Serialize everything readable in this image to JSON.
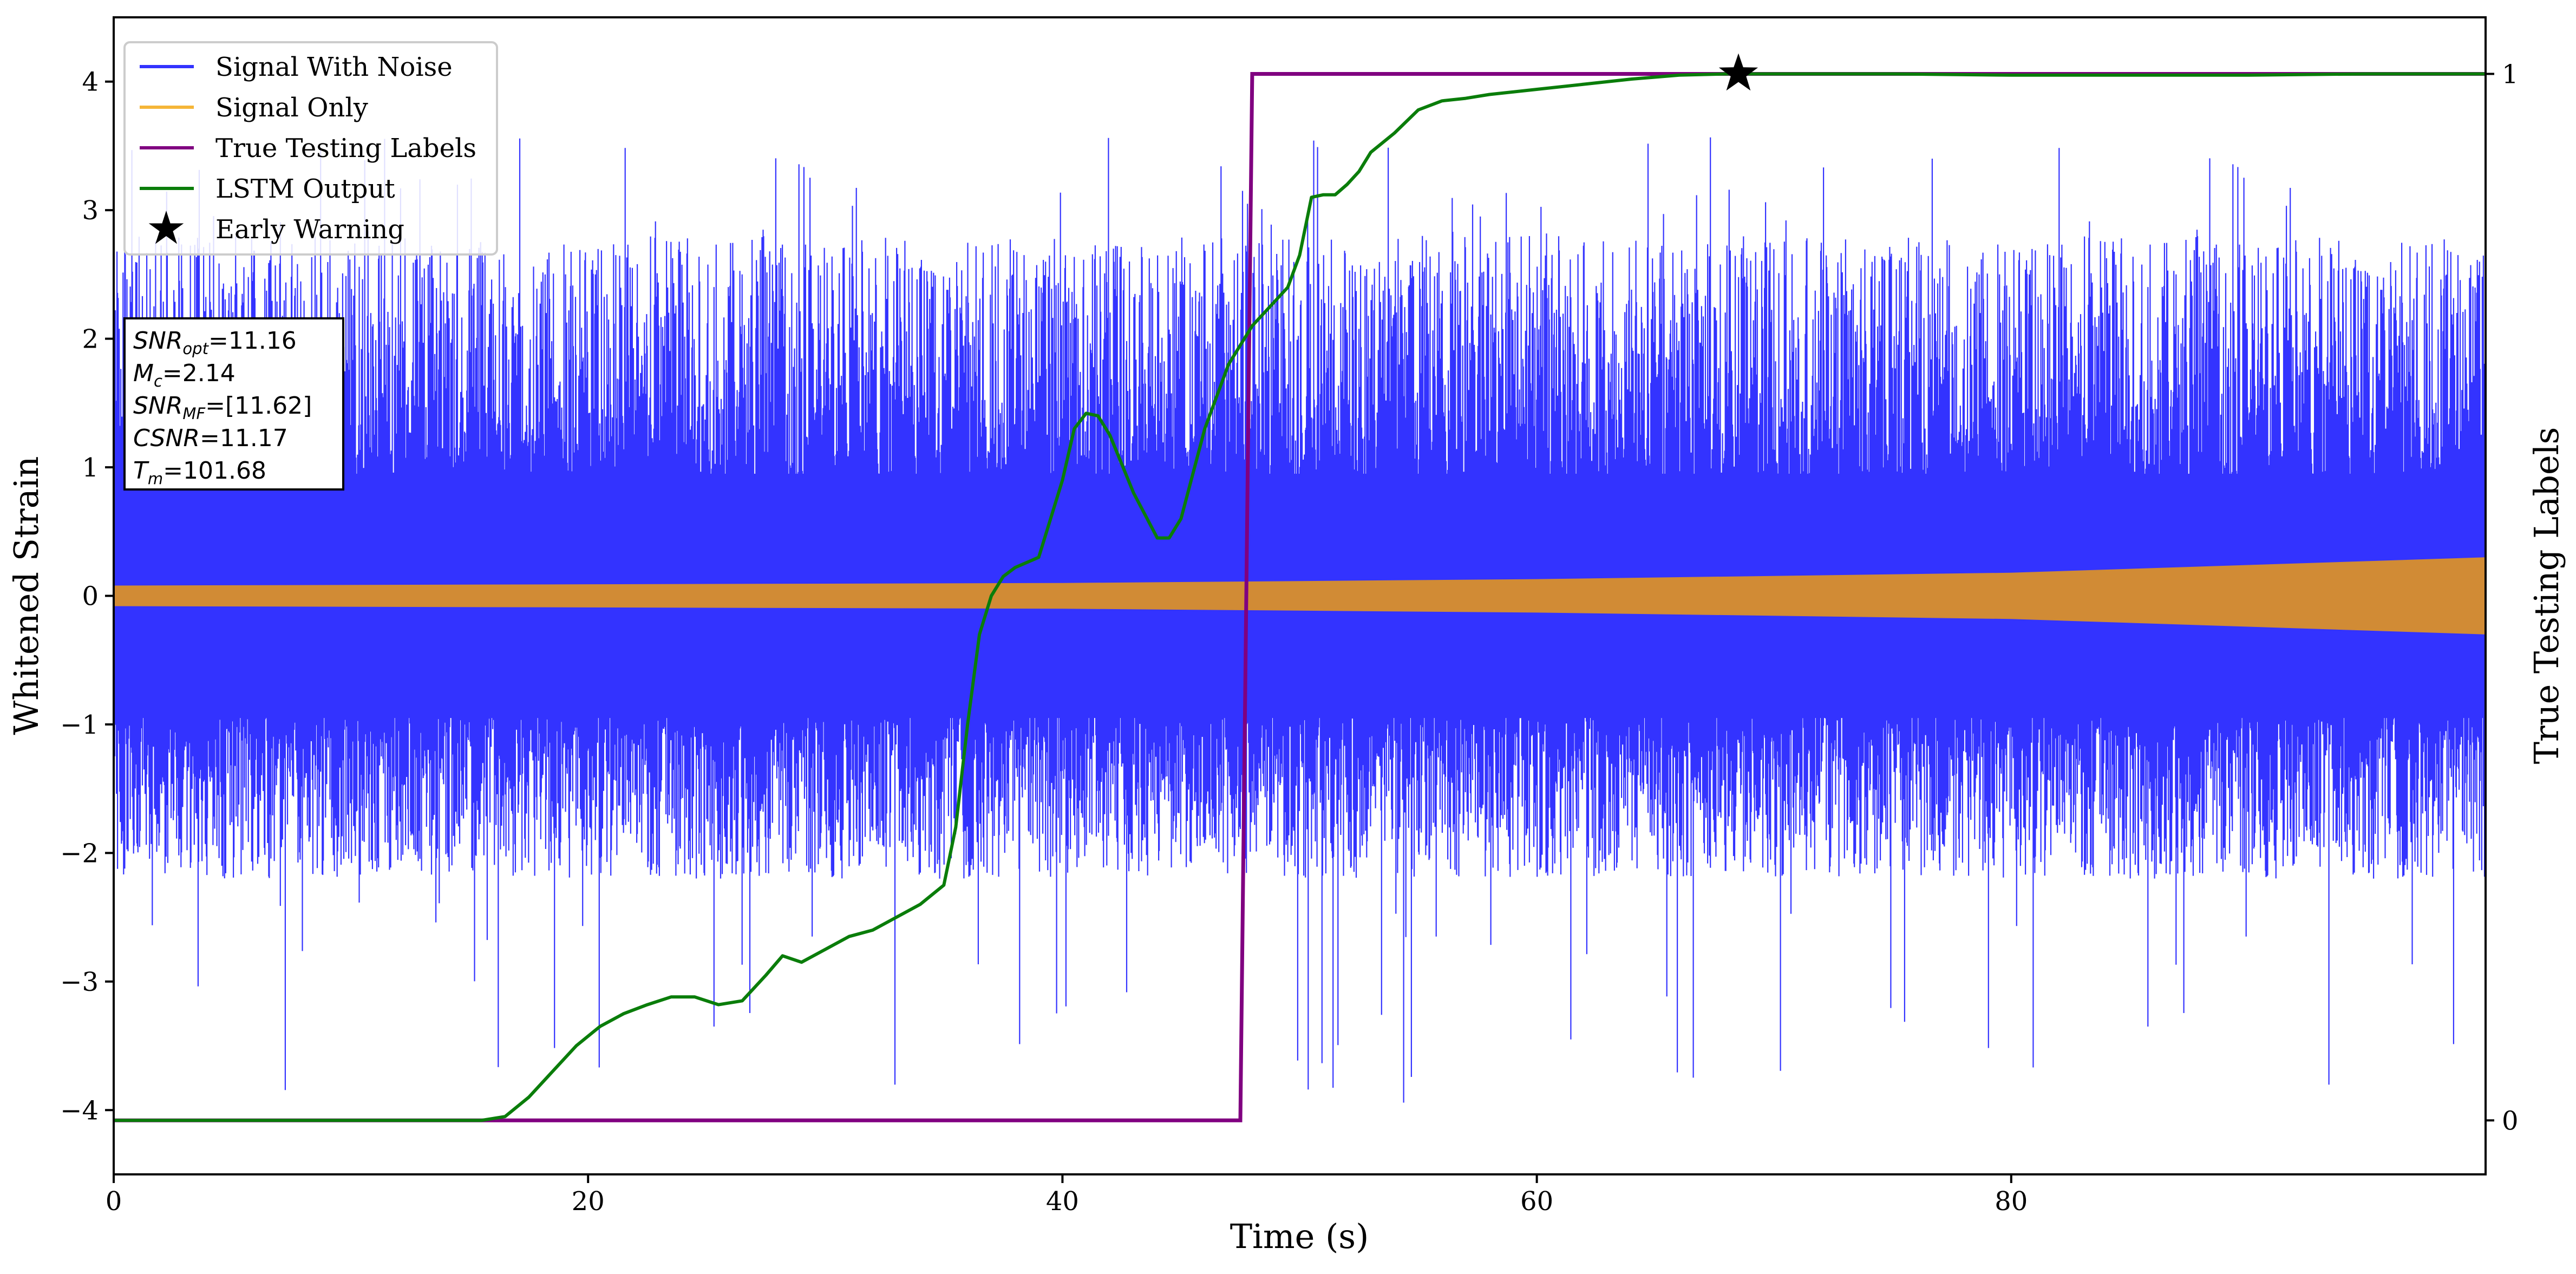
{
  "colors": {
    "noise": "#3333ff",
    "signal": "#d18b35",
    "labels": "#800080",
    "lstm": "#0a7d0a",
    "marker": "#000000"
  },
  "chart_data": {
    "type": "line",
    "xlabel": "Time (s)",
    "ylabel": "Whitened Strain",
    "ylabel_right": "True Testing Labels",
    "xlim": [
      0,
      100
    ],
    "ylim": [
      -4.5,
      4.5
    ],
    "xticks": [
      0,
      20,
      40,
      60,
      80
    ],
    "yticks": [
      -4,
      -3,
      -2,
      -1,
      0,
      1,
      2,
      3,
      4
    ],
    "yticks_right": [
      0,
      1
    ],
    "legend_position": "top-left",
    "legend": [
      {
        "label": "Signal With Noise",
        "color": "#3333ff",
        "kind": "line"
      },
      {
        "label": "Signal Only",
        "color": "#f5b638",
        "kind": "line"
      },
      {
        "label": "True Testing Labels",
        "color": "#800080",
        "kind": "line"
      },
      {
        "label": "LSTM Output",
        "color": "#0a7d0a",
        "kind": "line"
      },
      {
        "label": "Early Warning",
        "color": "#000000",
        "kind": "star"
      }
    ],
    "info_box": {
      "snr_opt_sym": "SNR",
      "snr_opt_sub": "opt",
      "snr_opt_val": "=11.16",
      "mc_sym": "M",
      "mc_sub": "c",
      "mc_val": "=2.14",
      "snr_mf_sym": "SNR",
      "snr_mf_sub": "MF",
      "snr_mf_val": "=[11.62]",
      "csnr_sym": "CSNR",
      "csnr_val": "=11.17",
      "tm_sym": "T",
      "tm_sub": "m",
      "tm_val": "=101.68"
    },
    "series": [
      {
        "name": "Signal With Noise",
        "axis": "left",
        "style": "noise-band",
        "value_range": [
          -4.05,
          3.57
        ],
        "typical_envelope": [
          -2.2,
          2.8
        ]
      },
      {
        "name": "Signal Only",
        "axis": "left",
        "style": "envelope",
        "x": [
          0,
          20,
          40,
          60,
          80,
          100
        ],
        "upper": [
          0.08,
          0.09,
          0.1,
          0.13,
          0.18,
          0.3
        ],
        "lower": [
          -0.08,
          -0.09,
          -0.1,
          -0.13,
          -0.18,
          -0.3
        ]
      },
      {
        "name": "True Testing Labels",
        "axis": "right",
        "x": [
          0,
          47.5,
          48.0,
          100
        ],
        "y": [
          0,
          0,
          1,
          1
        ]
      },
      {
        "name": "LSTM Output",
        "axis": "left",
        "x": [
          0,
          15.5,
          16.5,
          17.5,
          18.5,
          19.5,
          20.5,
          21.5,
          22.5,
          23.5,
          24.5,
          25.5,
          26.5,
          27.5,
          28.2,
          29.0,
          30.0,
          31.0,
          32.0,
          33.0,
          34.0,
          35.0,
          35.5,
          36.0,
          36.5,
          37.0,
          37.5,
          38.0,
          39.0,
          40.0,
          40.5,
          41.0,
          41.5,
          42.0,
          43.0,
          44.0,
          44.5,
          45.0,
          46.0,
          47.0,
          48.0,
          49.0,
          49.5,
          50.0,
          50.5,
          51.0,
          51.5,
          52.0,
          52.5,
          53.0,
          54.0,
          55.0,
          56.0,
          57.0,
          58.0,
          60.0,
          62.0,
          64.0,
          66.0,
          68.0,
          70.0,
          75.0,
          80.0,
          90.0,
          95.0,
          100.0
        ],
        "y": [
          -4.08,
          -4.08,
          -4.05,
          -3.9,
          -3.7,
          -3.5,
          -3.35,
          -3.25,
          -3.18,
          -3.12,
          -3.12,
          -3.18,
          -3.15,
          -2.95,
          -2.8,
          -2.85,
          -2.75,
          -2.65,
          -2.6,
          -2.5,
          -2.4,
          -2.25,
          -1.8,
          -1.0,
          -0.3,
          0.0,
          0.15,
          0.22,
          0.3,
          0.9,
          1.3,
          1.42,
          1.4,
          1.25,
          0.8,
          0.45,
          0.45,
          0.6,
          1.3,
          1.8,
          2.1,
          2.3,
          2.4,
          2.65,
          3.1,
          3.12,
          3.12,
          3.2,
          3.3,
          3.45,
          3.6,
          3.78,
          3.85,
          3.87,
          3.9,
          3.94,
          3.98,
          4.02,
          4.05,
          4.06,
          4.06,
          4.06,
          4.05,
          4.05,
          4.06,
          4.06
        ]
      },
      {
        "name": "Early Warning",
        "axis": "left",
        "style": "marker-star",
        "x": [
          68.5
        ],
        "y": [
          4.06
        ]
      }
    ]
  }
}
